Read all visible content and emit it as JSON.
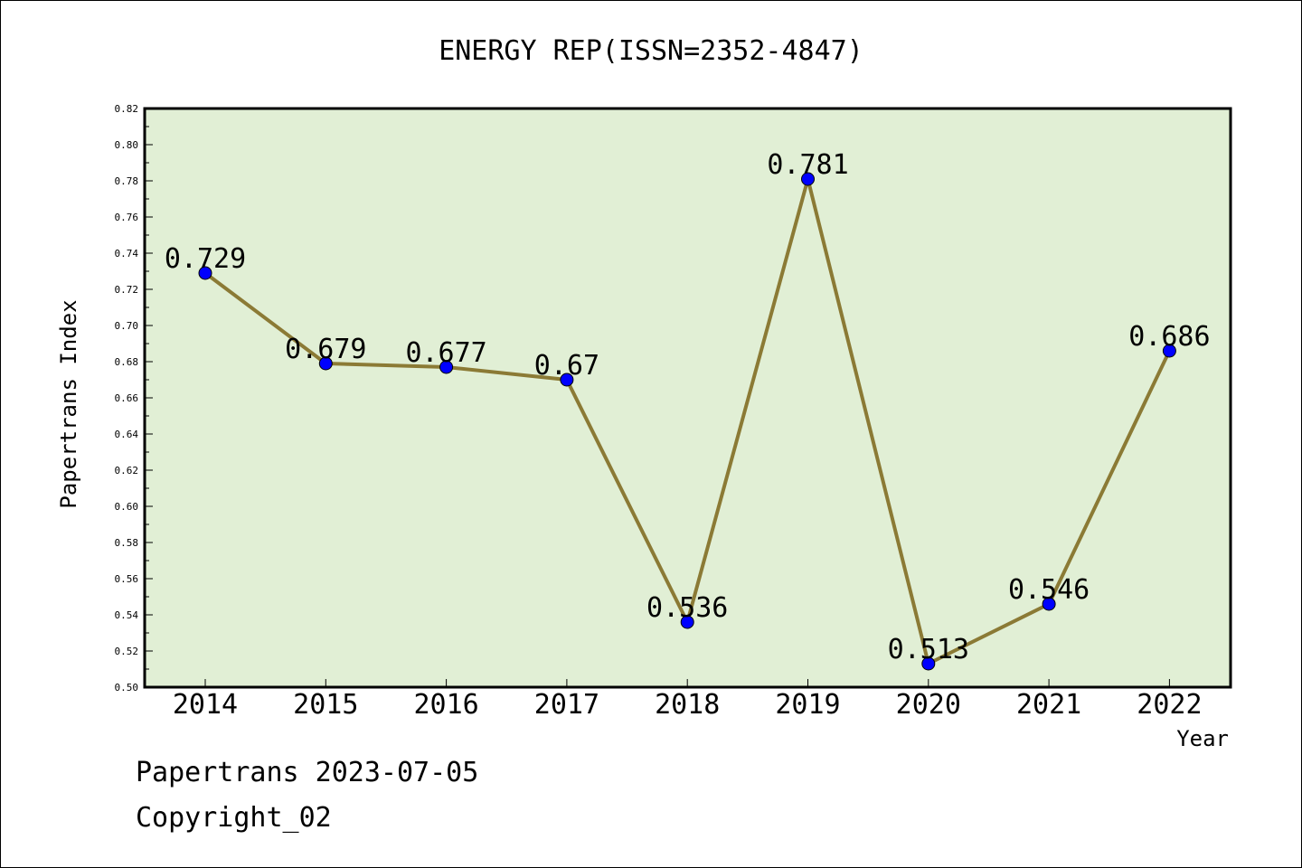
{
  "chart_data": {
    "type": "line",
    "title": "ENERGY REP(ISSN=2352-4847)",
    "xlabel": "Year",
    "ylabel": "Papertrans Index",
    "categories": [
      "2014",
      "2015",
      "2016",
      "2017",
      "2018",
      "2019",
      "2020",
      "2021",
      "2022"
    ],
    "series": [
      {
        "values": [
          0.729,
          0.679,
          0.677,
          0.67,
          0.536,
          0.781,
          0.513,
          0.546,
          0.686
        ],
        "labels": [
          "0.729",
          "0.679",
          "0.677",
          "0.67",
          "0.536",
          "0.781",
          "0.513",
          "0.546",
          "0.686"
        ]
      }
    ],
    "ylim": [
      0.5,
      0.82
    ],
    "yticks": [
      "0.50",
      "0.52",
      "0.54",
      "0.56",
      "0.58",
      "0.60",
      "0.62",
      "0.64",
      "0.66",
      "0.68",
      "0.70",
      "0.72",
      "0.74",
      "0.76",
      "0.78",
      "0.80",
      "0.82"
    ],
    "grid": false,
    "colors": {
      "plot_background": "#e1efd5",
      "line": "#8b7a35",
      "marker": "#0000ff"
    }
  },
  "footer": {
    "line1": "Papertrans 2023-07-05",
    "line2": "Copyright_02"
  }
}
